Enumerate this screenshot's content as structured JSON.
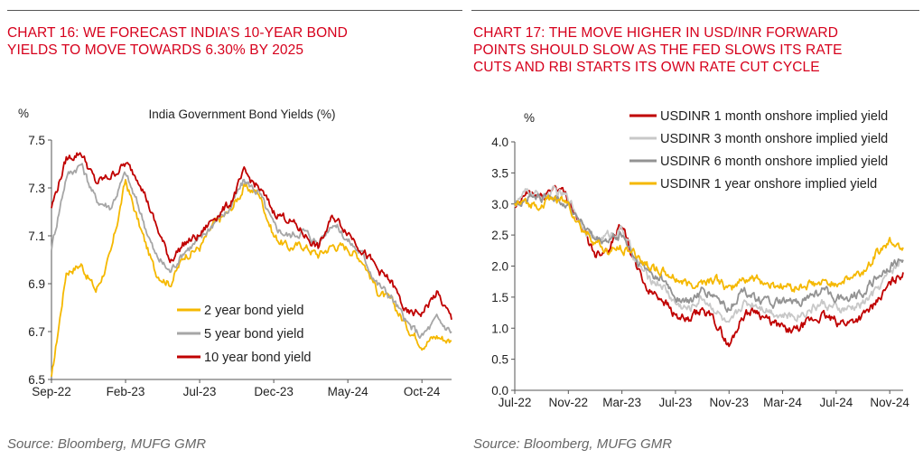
{
  "chart16": {
    "title": "CHART 16: WE FORECAST INDIA’S 10-YEAR BOND YIELDS TO MOVE TOWARDS 6.30% BY 2025",
    "title_lines": [
      "CHART 16: WE FORECAST INDIA’S 10-YEAR BOND",
      "YIELDS TO MOVE TOWARDS 6.30% BY 2025"
    ],
    "source": "Source: Bloomberg, MUFG GMR"
  },
  "chart17": {
    "title": "CHART 17: THE MOVE HIGHER IN USD/INR FORWARD POINTS SHOULD SLOW AS THE FED SLOWS ITS RATE CUTS AND RBI STARTS ITS OWN RATE CUT CYCLE",
    "title_lines": [
      "CHART 17: THE MOVE HIGHER IN USD/INR FORWARD",
      "POINTS SHOULD SLOW AS THE FED SLOWS ITS RATE",
      "CUTS AND RBI STARTS ITS OWN RATE CUT CYCLE"
    ],
    "source": "Source: Bloomberg, MUFG GMR"
  },
  "chart_data": [
    {
      "type": "line",
      "title": "India Government Bond Yields (%)",
      "ylabel": "%",
      "ylim": [
        6.5,
        7.5
      ],
      "yticks": [
        "7.5",
        "7.3",
        "7.1",
        "6.9",
        "6.7",
        "6.5"
      ],
      "xticks": [
        "Sep-22",
        "Feb-23",
        "Jul-23",
        "Dec-23",
        "May-24",
        "Oct-24"
      ],
      "x": [
        "Sep-22",
        "Oct-22",
        "Nov-22",
        "Dec-22",
        "Jan-23",
        "Feb-23",
        "Mar-23",
        "Apr-23",
        "May-23",
        "Jun-23",
        "Jul-23",
        "Aug-23",
        "Sep-23",
        "Oct-23",
        "Nov-23",
        "Dec-23",
        "Jan-24",
        "Feb-24",
        "Mar-24",
        "Apr-24",
        "May-24",
        "Jun-24",
        "Jul-24",
        "Aug-24",
        "Sep-24",
        "Oct-24",
        "Nov-24",
        "Dec-24"
      ],
      "legend_position": "bottom-center",
      "grid": false,
      "series": [
        {
          "name": "2 year  bond yield",
          "color": "#f5b800",
          "values": [
            6.5,
            6.95,
            6.98,
            6.87,
            7.02,
            7.33,
            7.13,
            6.95,
            6.9,
            7.02,
            7.05,
            7.15,
            7.2,
            7.3,
            7.28,
            7.1,
            7.05,
            7.06,
            7.02,
            7.06,
            7.05,
            7.0,
            6.87,
            6.82,
            6.72,
            6.65,
            6.68,
            6.66
          ]
        },
        {
          "name": "5 year  bond yield",
          "color": "#a6a6a6",
          "values": [
            7.05,
            7.35,
            7.4,
            7.25,
            7.22,
            7.36,
            7.2,
            7.02,
            6.95,
            7.04,
            7.08,
            7.16,
            7.21,
            7.33,
            7.28,
            7.14,
            7.1,
            7.12,
            7.07,
            7.16,
            7.08,
            7.02,
            6.9,
            6.84,
            6.73,
            6.68,
            6.75,
            6.7
          ]
        },
        {
          "name": "10 year  bond yield",
          "color": "#c00000",
          "values": [
            7.22,
            7.42,
            7.45,
            7.32,
            7.35,
            7.4,
            7.33,
            7.15,
            7.0,
            7.07,
            7.1,
            7.18,
            7.23,
            7.36,
            7.3,
            7.2,
            7.17,
            7.11,
            7.05,
            7.18,
            7.12,
            7.04,
            6.96,
            6.9,
            6.77,
            6.78,
            6.86,
            6.75
          ]
        }
      ]
    },
    {
      "type": "line",
      "ylabel": "%",
      "ylim": [
        0.0,
        4.0
      ],
      "yticks": [
        "4.0",
        "3.5",
        "3.0",
        "2.5",
        "2.0",
        "1.5",
        "1.0",
        "0.5",
        "0.0"
      ],
      "xticks": [
        "Jul-22",
        "Nov-22",
        "Mar-23",
        "Jul-23",
        "Nov-23",
        "Mar-24",
        "Jul-24",
        "Nov-24"
      ],
      "x": [
        "Jul-22",
        "Aug-22",
        "Sep-22",
        "Oct-22",
        "Nov-22",
        "Dec-22",
        "Jan-23",
        "Feb-23",
        "Mar-23",
        "Apr-23",
        "May-23",
        "Jun-23",
        "Jul-23",
        "Aug-23",
        "Sep-23",
        "Oct-23",
        "Nov-23",
        "Dec-23",
        "Jan-24",
        "Feb-24",
        "Mar-24",
        "Apr-24",
        "May-24",
        "Jun-24",
        "Jul-24",
        "Aug-24",
        "Sep-24",
        "Oct-24",
        "Nov-24",
        "Dec-24"
      ],
      "legend_position": "top-right",
      "grid": false,
      "series": [
        {
          "name": "USDINR 1 month onshore implied yield",
          "color": "#c00000",
          "values": [
            2.9,
            3.2,
            3.1,
            3.3,
            3.1,
            2.6,
            2.2,
            2.3,
            2.7,
            2.0,
            1.6,
            1.5,
            1.2,
            1.1,
            1.3,
            1.1,
            0.7,
            1.2,
            1.3,
            1.1,
            1.0,
            0.95,
            1.1,
            1.2,
            1.1,
            1.1,
            1.2,
            1.4,
            1.7,
            1.9
          ]
        },
        {
          "name": "USDINR 3 month onshore implied yield",
          "color": "#c8c8c8",
          "values": [
            3.0,
            3.2,
            3.1,
            3.2,
            3.1,
            2.7,
            2.4,
            2.5,
            2.6,
            2.1,
            1.8,
            1.7,
            1.4,
            1.3,
            1.5,
            1.3,
            1.0,
            1.4,
            1.4,
            1.3,
            1.2,
            1.2,
            1.3,
            1.4,
            1.3,
            1.3,
            1.4,
            1.6,
            1.9,
            2.1
          ]
        },
        {
          "name": "USDINR 6 month onshore implied yield",
          "color": "#939393",
          "values": [
            3.0,
            3.1,
            3.1,
            3.1,
            3.0,
            2.7,
            2.4,
            2.4,
            2.5,
            2.1,
            1.9,
            1.8,
            1.5,
            1.4,
            1.6,
            1.5,
            1.3,
            1.6,
            1.5,
            1.4,
            1.4,
            1.4,
            1.5,
            1.6,
            1.5,
            1.5,
            1.6,
            1.8,
            2.0,
            2.1
          ]
        },
        {
          "name": "USDINR 1 year onshore implied yield",
          "color": "#f5b800",
          "values": [
            3.0,
            3.0,
            3.0,
            3.1,
            3.0,
            2.6,
            2.4,
            2.2,
            2.3,
            2.2,
            2.0,
            1.9,
            1.8,
            1.7,
            1.75,
            1.8,
            1.6,
            1.8,
            1.8,
            1.7,
            1.7,
            1.65,
            1.7,
            1.7,
            1.75,
            1.8,
            1.9,
            2.2,
            2.4,
            2.3
          ]
        }
      ]
    }
  ]
}
